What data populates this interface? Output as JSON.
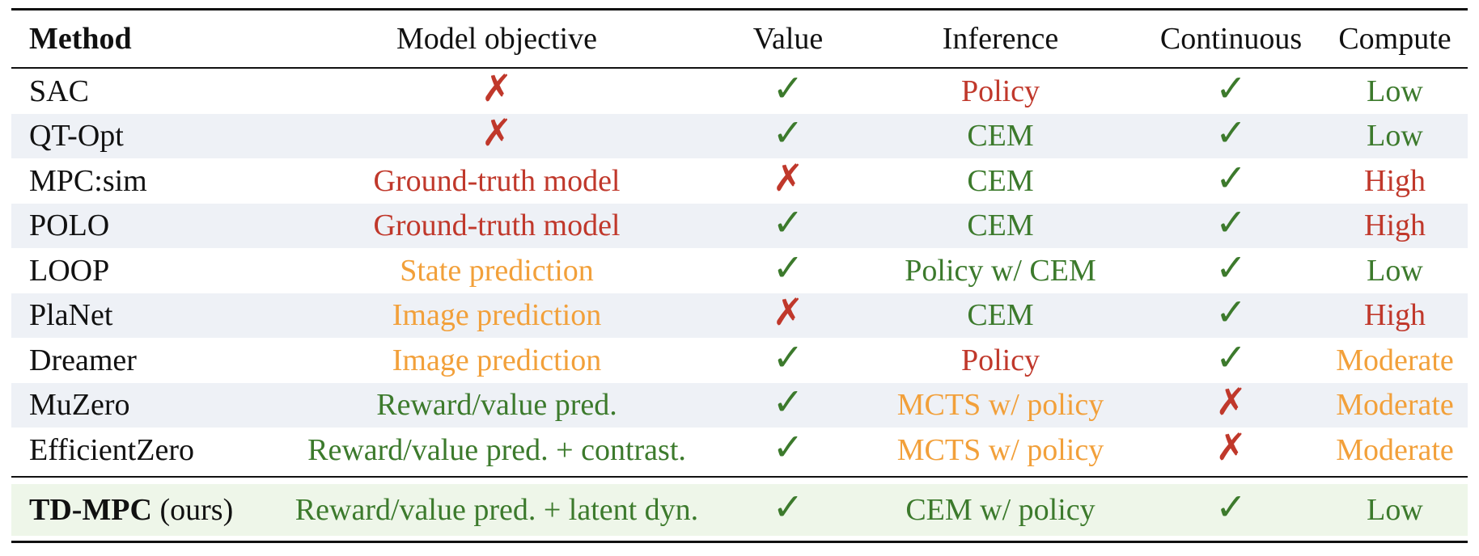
{
  "colors": {
    "green": "#3c7a2c",
    "red": "#c0382b",
    "orange": "#f2a03a",
    "row_shade": "#eef1f6",
    "ours_shade": "#eef6e9"
  },
  "header": {
    "method": "Method",
    "objective": "Model objective",
    "value": "Value",
    "inference": "Inference",
    "continuous": "Continuous",
    "compute": "Compute"
  },
  "rows": [
    {
      "method": "SAC",
      "objective": {
        "type": "cross",
        "text": "✗",
        "color": "red"
      },
      "value": {
        "type": "check",
        "text": "✓"
      },
      "inference": {
        "text": "Policy",
        "color": "red"
      },
      "continuous": {
        "type": "check",
        "text": "✓"
      },
      "compute": {
        "text": "Low",
        "color": "green"
      }
    },
    {
      "method": "QT-Opt",
      "objective": {
        "type": "cross",
        "text": "✗",
        "color": "red"
      },
      "value": {
        "type": "check",
        "text": "✓"
      },
      "inference": {
        "text": "CEM",
        "color": "green"
      },
      "continuous": {
        "type": "check",
        "text": "✓"
      },
      "compute": {
        "text": "Low",
        "color": "green"
      }
    },
    {
      "method": "MPC:sim",
      "objective": {
        "type": "text",
        "text": "Ground-truth model",
        "color": "red"
      },
      "value": {
        "type": "cross",
        "text": "✗"
      },
      "inference": {
        "text": "CEM",
        "color": "green"
      },
      "continuous": {
        "type": "check",
        "text": "✓"
      },
      "compute": {
        "text": "High",
        "color": "red"
      }
    },
    {
      "method": "POLO",
      "objective": {
        "type": "text",
        "text": "Ground-truth model",
        "color": "red"
      },
      "value": {
        "type": "check",
        "text": "✓"
      },
      "inference": {
        "text": "CEM",
        "color": "green"
      },
      "continuous": {
        "type": "check",
        "text": "✓"
      },
      "compute": {
        "text": "High",
        "color": "red"
      }
    },
    {
      "method": "LOOP",
      "objective": {
        "type": "text",
        "text": "State prediction",
        "color": "orange"
      },
      "value": {
        "type": "check",
        "text": "✓"
      },
      "inference": {
        "text": "Policy w/ CEM",
        "color": "green"
      },
      "continuous": {
        "type": "check",
        "text": "✓"
      },
      "compute": {
        "text": "Low",
        "color": "green"
      }
    },
    {
      "method": "PlaNet",
      "objective": {
        "type": "text",
        "text": "Image prediction",
        "color": "orange"
      },
      "value": {
        "type": "cross",
        "text": "✗"
      },
      "inference": {
        "text": "CEM",
        "color": "green"
      },
      "continuous": {
        "type": "check",
        "text": "✓"
      },
      "compute": {
        "text": "High",
        "color": "red"
      }
    },
    {
      "method": "Dreamer",
      "objective": {
        "type": "text",
        "text": "Image prediction",
        "color": "orange"
      },
      "value": {
        "type": "check",
        "text": "✓"
      },
      "inference": {
        "text": "Policy",
        "color": "red"
      },
      "continuous": {
        "type": "check",
        "text": "✓"
      },
      "compute": {
        "text": "Moderate",
        "color": "orange"
      }
    },
    {
      "method": "MuZero",
      "objective": {
        "type": "text",
        "text": "Reward/value pred.",
        "color": "green"
      },
      "value": {
        "type": "check",
        "text": "✓"
      },
      "inference": {
        "text": "MCTS w/ policy",
        "color": "orange"
      },
      "continuous": {
        "type": "cross",
        "text": "✗"
      },
      "compute": {
        "text": "Moderate",
        "color": "orange"
      }
    },
    {
      "method": "EfficientZero",
      "objective": {
        "type": "text",
        "text": "Reward/value pred. + contrast.",
        "color": "green"
      },
      "value": {
        "type": "check",
        "text": "✓"
      },
      "inference": {
        "text": "MCTS w/ policy",
        "color": "orange"
      },
      "continuous": {
        "type": "cross",
        "text": "✗"
      },
      "compute": {
        "text": "Moderate",
        "color": "orange"
      }
    }
  ],
  "ours": {
    "method": "TD-MPC",
    "suffix": " (ours)",
    "objective": {
      "text": "Reward/value pred. + latent dyn.",
      "color": "green"
    },
    "value": {
      "type": "check",
      "text": "✓"
    },
    "inference": {
      "text": "CEM w/ policy",
      "color": "green"
    },
    "continuous": {
      "type": "check",
      "text": "✓"
    },
    "compute": {
      "text": "Low",
      "color": "green"
    }
  }
}
